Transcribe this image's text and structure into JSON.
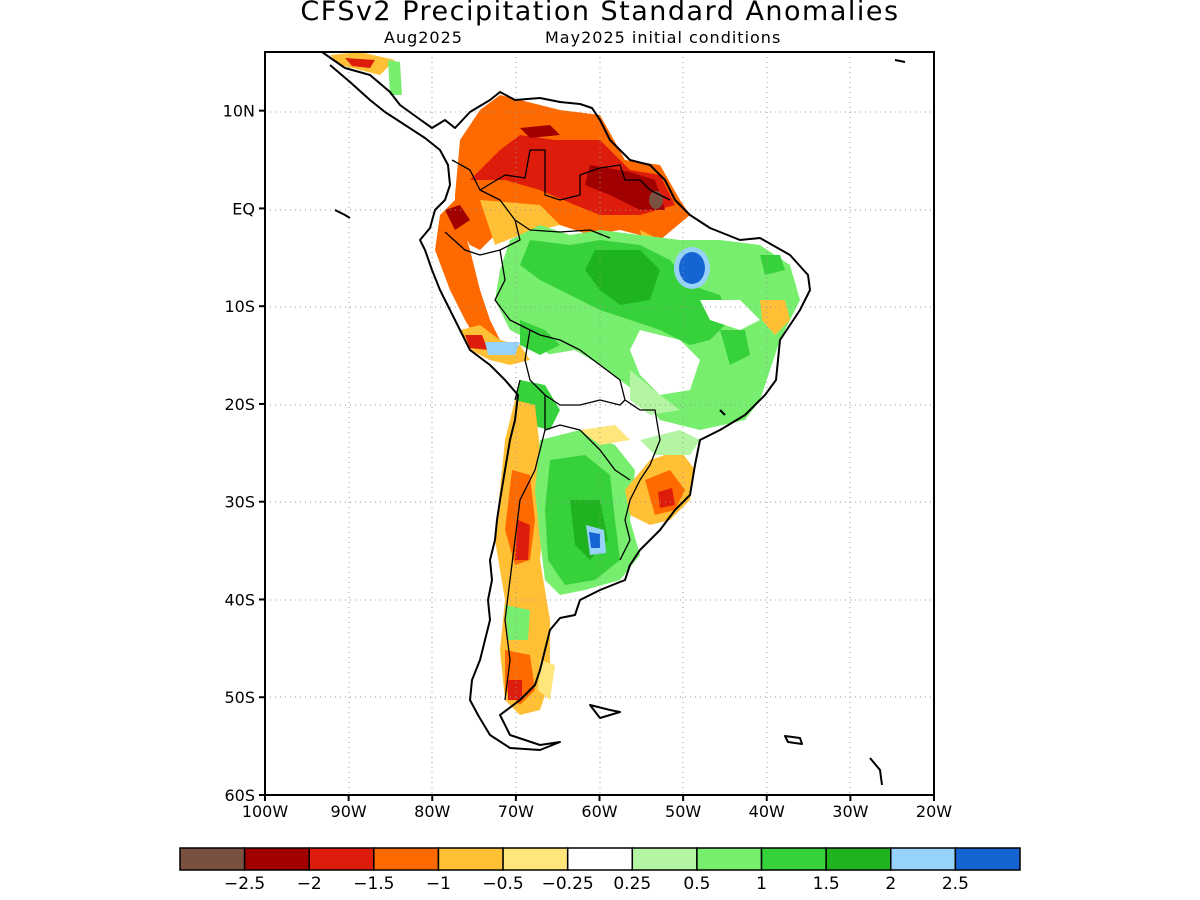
{
  "title": "CFSv2 Precipitation Standard Anomalies",
  "subtitle_left": "Aug2025",
  "subtitle_right": "May2025 initial conditions",
  "map": {
    "projection": "lat-lon",
    "lon_range": [
      -100,
      -20
    ],
    "lat_range": [
      -60,
      16
    ],
    "grid": "dotted",
    "lat_ticks": [
      {
        "lat": 10,
        "label": "10N"
      },
      {
        "lat": 0,
        "label": "EQ"
      },
      {
        "lat": -10,
        "label": "10S"
      },
      {
        "lat": -20,
        "label": "20S"
      },
      {
        "lat": -30,
        "label": "30S"
      },
      {
        "lat": -40,
        "label": "40S"
      },
      {
        "lat": -50,
        "label": "50S"
      },
      {
        "lat": -60,
        "label": "60S"
      }
    ],
    "lon_ticks": [
      {
        "lon": -100,
        "label": "100W"
      },
      {
        "lon": -90,
        "label": "90W"
      },
      {
        "lon": -80,
        "label": "80W"
      },
      {
        "lon": -70,
        "label": "70W"
      },
      {
        "lon": -60,
        "label": "60W"
      },
      {
        "lon": -50,
        "label": "50W"
      },
      {
        "lon": -40,
        "label": "40W"
      },
      {
        "lon": -30,
        "label": "30W"
      },
      {
        "lon": -20,
        "label": "20W"
      }
    ]
  },
  "colorbar": {
    "colors": [
      "#7a5040",
      "#a00000",
      "#dd1c0c",
      "#ff6a00",
      "#ffc036",
      "#ffe57a",
      "#ffffff",
      "#b4f5a4",
      "#78ee6e",
      "#37d23b",
      "#1fb41f",
      "#96d2fa",
      "#1464d2"
    ],
    "labels": [
      "−2.5",
      "−2",
      "−1.5",
      "−1",
      "−0.5",
      "−0.25",
      "0.25",
      "0.5",
      "1",
      "1.5",
      "2",
      "2.5"
    ]
  }
}
